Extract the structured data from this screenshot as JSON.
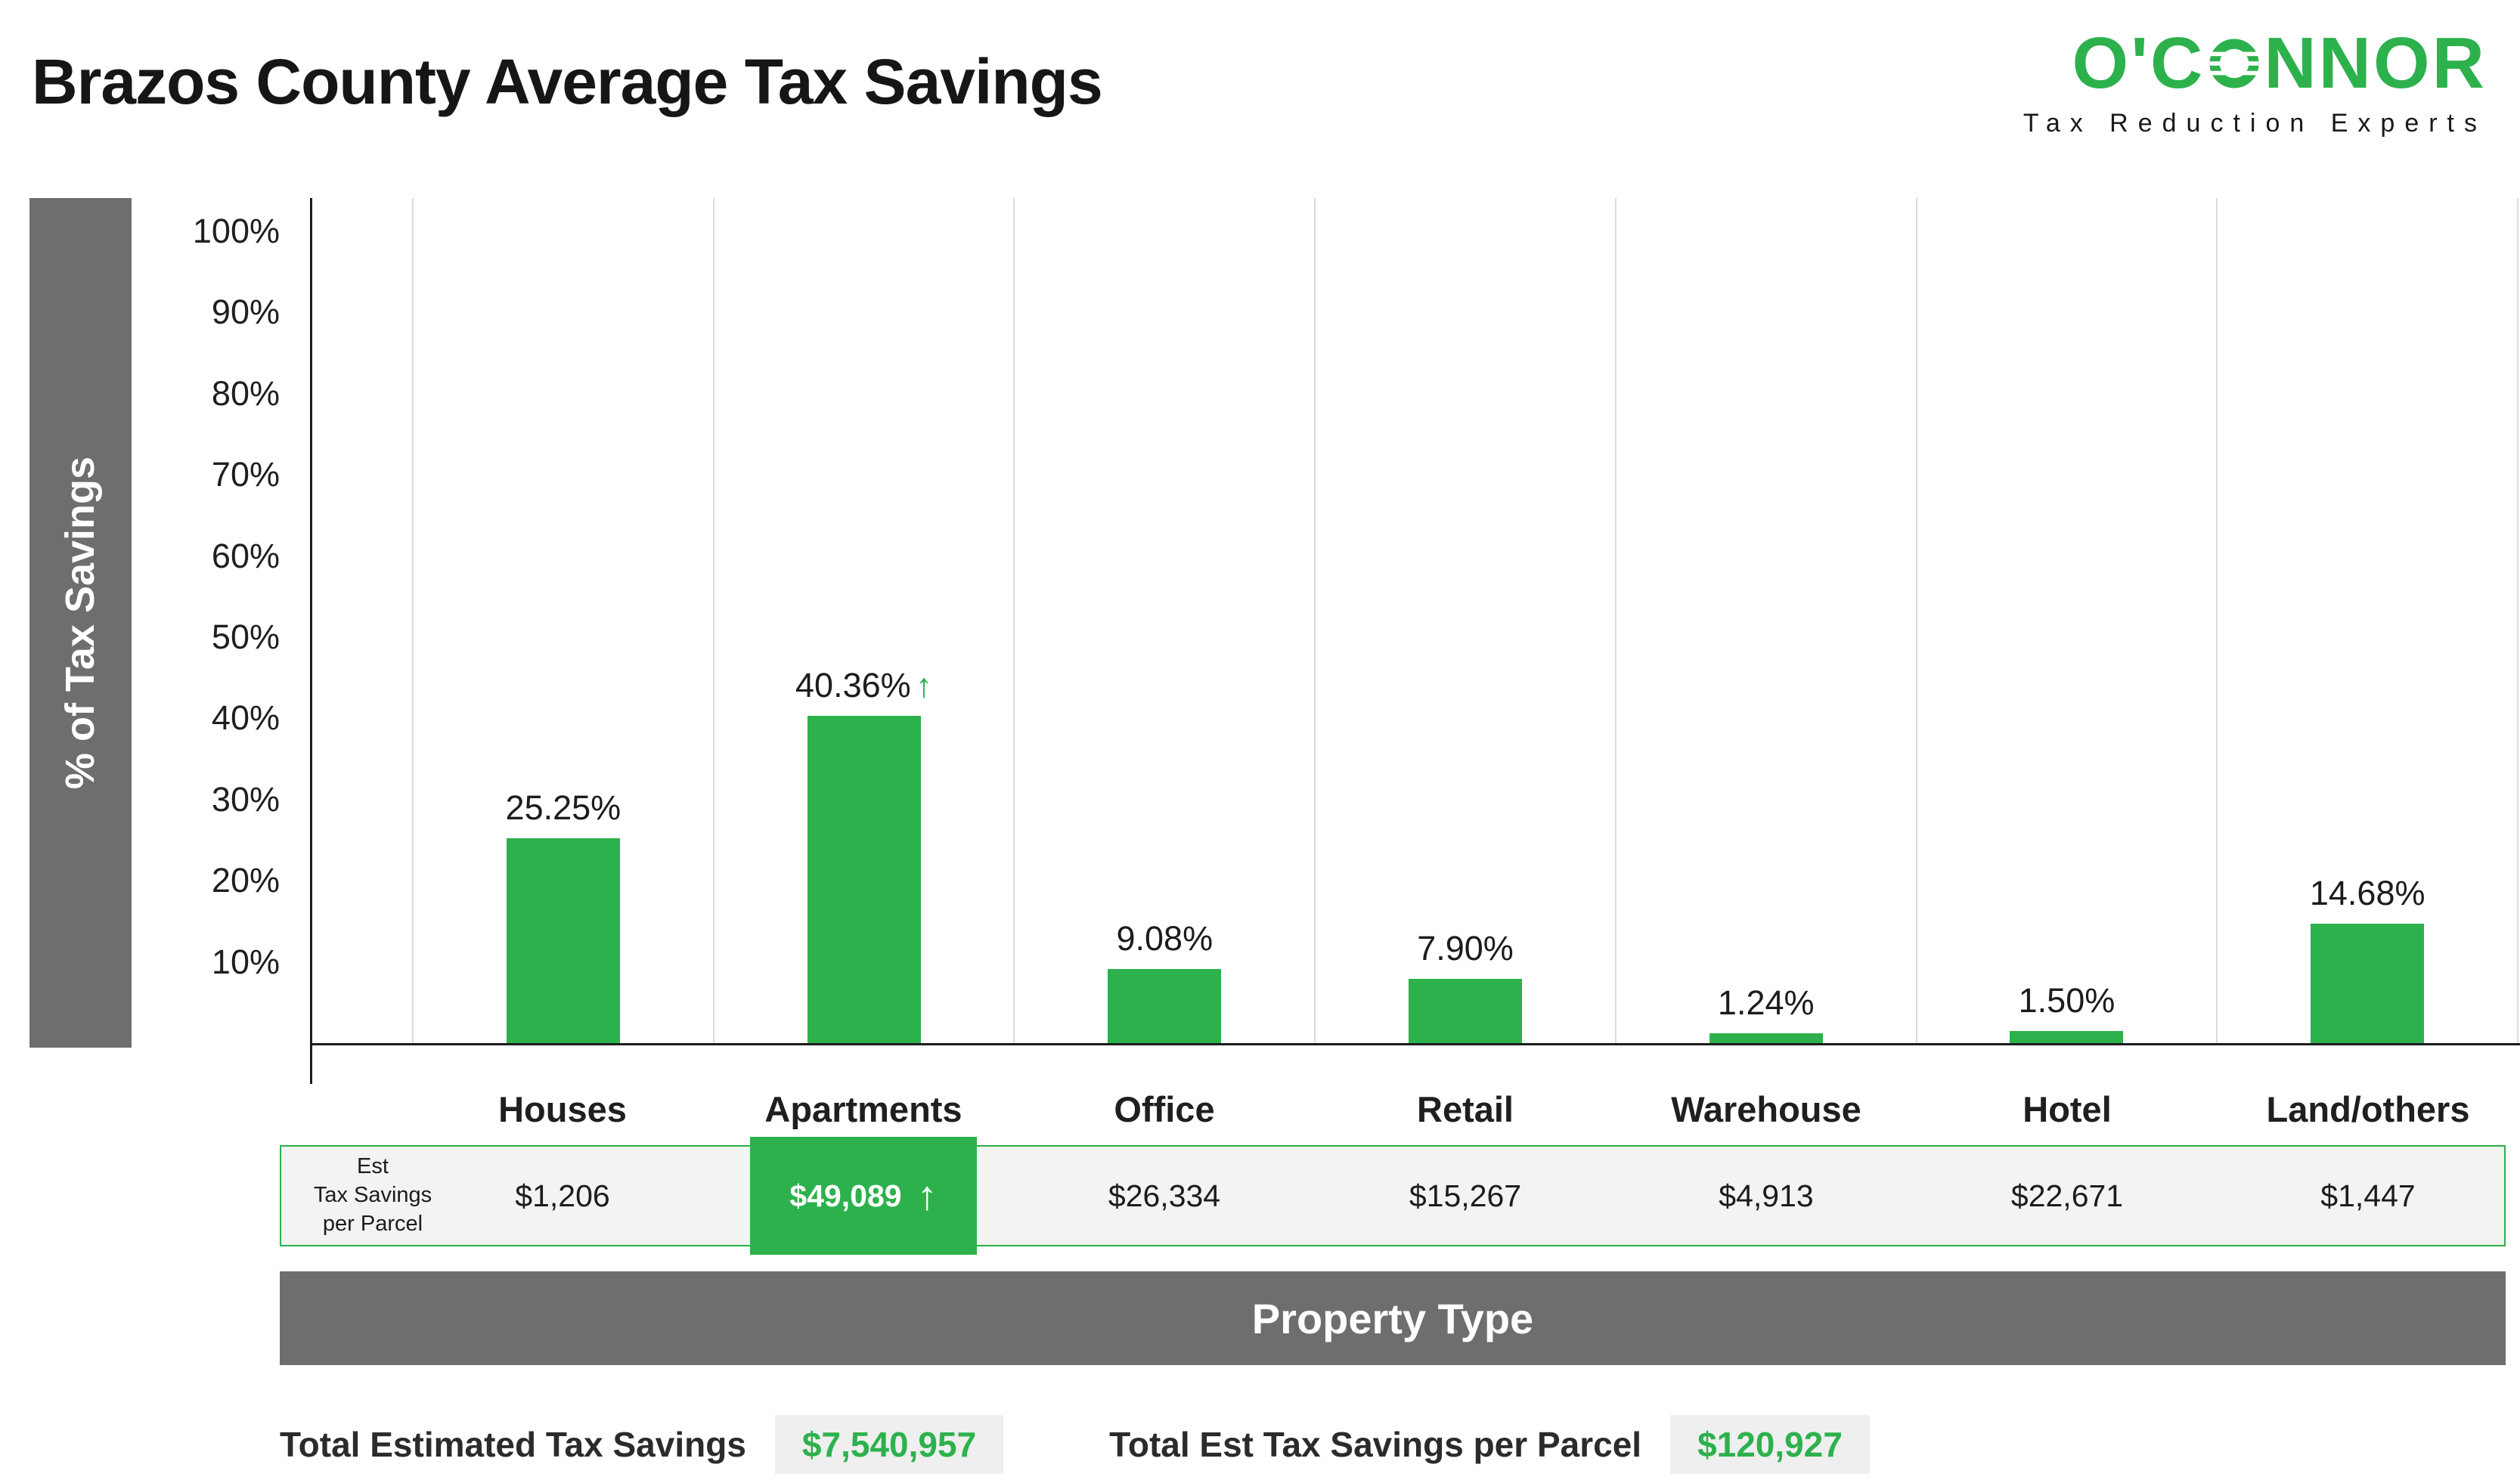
{
  "header": {
    "title": "Brazos County Average Tax Savings",
    "logo": {
      "wordmark_pre": "O'C",
      "wordmark_post": "NNOR",
      "tagline": "Tax Reduction Experts"
    }
  },
  "icons": {
    "arrow_up": "↑"
  },
  "axes": {
    "y_title": "% of Tax Savings",
    "x_title": "Property Type"
  },
  "chart_data": {
    "type": "bar",
    "title": "Brazos County Average Tax Savings",
    "xlabel": "Property Type",
    "ylabel": "% of Tax Savings",
    "ylim": [
      0,
      100
    ],
    "grid": "vertical",
    "y_ticks": [
      "100%",
      "90%",
      "80%",
      "70%",
      "60%",
      "50%",
      "40%",
      "30%",
      "20%",
      "10%"
    ],
    "categories": [
      "Houses",
      "Apartments",
      "Office",
      "Retail",
      "Warehouse",
      "Hotel",
      "Land/others"
    ],
    "series": [
      {
        "name": "% of Tax Savings",
        "values": [
          25.25,
          40.36,
          9.08,
          7.9,
          1.24,
          1.5,
          14.68
        ],
        "labels": [
          "25.25%",
          "40.36%",
          "9.08%",
          "7.90%",
          "1.24%",
          "1.50%",
          "14.68%"
        ]
      },
      {
        "name": "Est Tax Savings per Parcel",
        "values": [
          1206,
          49089,
          26334,
          15267,
          4913,
          22671,
          1447
        ],
        "labels": [
          "$1,206",
          "$49,089",
          "$26,334",
          "$15,267",
          "$4,913",
          "$22,671",
          "$1,447"
        ]
      }
    ],
    "highlight_category": "Apartments",
    "highlight_index": 1,
    "bar_color": "#2db14c"
  },
  "est_row": {
    "label_lines": [
      "Est",
      "Tax Savings",
      "per Parcel"
    ]
  },
  "totals": [
    {
      "label": "Total Estimated Tax Savings",
      "value": "$7,540,957"
    },
    {
      "label": "Total Est Tax Savings per Parcel",
      "value": "$120,927"
    }
  ],
  "colors": {
    "green": "#2db14c",
    "gray_band": "#6e6e6e",
    "grid_line": "#dbdbdb",
    "panel_bg": "#f2f4f1",
    "value_box_bg": "#efefef"
  }
}
